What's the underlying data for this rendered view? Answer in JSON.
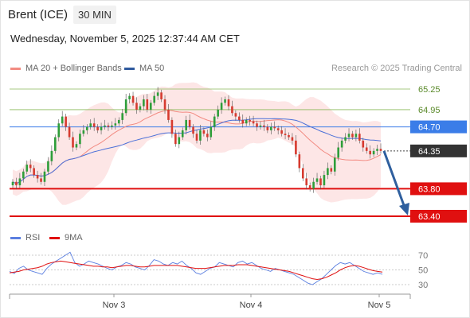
{
  "header": {
    "instrument": "Brent (ICE)",
    "timeframe": "30 MIN",
    "datetime": "Wednesday, November 5, 2025 12:37:44 AM CET"
  },
  "legend": {
    "ma20_label": "MA 20 + Bollinger Bands",
    "ma50_label": "MA 50",
    "credit": "Research © 2025 Trading Central",
    "rsi_label": "RSI",
    "ma9_label": "9MA"
  },
  "colors": {
    "ma20": "#f28b82",
    "band_fill": "#fde3e3",
    "ma50": "#4a6fd8",
    "resistance_line": "#8ab85a",
    "pivot_blue": "#3b7de8",
    "support_red": "#e01010",
    "current_box": "#333333",
    "candle_up": "#2e9e3a",
    "candle_down": "#d63a2f",
    "rsi": "#5b7fe0",
    "rsi_ma": "#e01010",
    "arrow": "#2f5f9e"
  },
  "chart_data": {
    "type": "candlestick",
    "price_axis_levels": [
      65.25,
      64.95,
      64.7,
      64.35,
      63.8,
      63.4
    ],
    "levels": [
      {
        "value": 65.25,
        "label": "65.25",
        "kind": "resistance"
      },
      {
        "value": 64.95,
        "label": "64.95",
        "kind": "resistance"
      },
      {
        "value": 64.7,
        "label": "64.70",
        "kind": "pivot"
      },
      {
        "value": 64.35,
        "label": "64.35",
        "kind": "current"
      },
      {
        "value": 63.8,
        "label": "63.80",
        "kind": "support"
      },
      {
        "value": 63.4,
        "label": "63.40",
        "kind": "support"
      }
    ],
    "x_ticks": [
      "Nov 3",
      "Nov 4",
      "Nov 5"
    ],
    "candles_close": [
      63.9,
      63.85,
      63.95,
      64.05,
      64.15,
      64.1,
      64.0,
      63.95,
      63.9,
      64.05,
      64.2,
      64.35,
      64.55,
      64.75,
      64.85,
      64.7,
      64.55,
      64.4,
      64.45,
      64.6,
      64.65,
      64.7,
      64.75,
      64.7,
      64.65,
      64.7,
      64.72,
      64.7,
      64.72,
      64.75,
      64.8,
      64.9,
      65.1,
      65.15,
      65.05,
      64.95,
      65.0,
      65.1,
      64.95,
      65.05,
      65.15,
      65.2,
      65.1,
      64.95,
      64.8,
      64.6,
      64.45,
      64.55,
      64.65,
      64.8,
      64.7,
      64.6,
      64.5,
      64.65,
      64.6,
      64.55,
      64.7,
      64.85,
      64.95,
      65.05,
      65.1,
      65.0,
      64.9,
      64.85,
      64.8,
      64.75,
      64.8,
      64.78,
      64.75,
      64.7,
      64.72,
      64.7,
      64.65,
      64.7,
      64.68,
      64.65,
      64.6,
      64.58,
      64.55,
      64.5,
      64.3,
      64.1,
      63.95,
      63.85,
      63.8,
      63.9,
      63.95,
      63.85,
      64.0,
      64.1,
      64.05,
      64.25,
      64.4,
      64.5,
      64.55,
      64.6,
      64.55,
      64.6,
      64.5,
      64.4,
      64.35,
      64.3,
      64.35,
      64.38,
      64.35
    ],
    "rsi": {
      "label": "RSI",
      "ma_label": "9MA",
      "axis_levels": [
        70,
        50,
        30
      ],
      "values": [
        48,
        45,
        52,
        55,
        50,
        48,
        46,
        44,
        52,
        58,
        62,
        66,
        70,
        74,
        60,
        55,
        58,
        62,
        60,
        58,
        55,
        52,
        50,
        54,
        56,
        60,
        58,
        54,
        52,
        50,
        56,
        64,
        62,
        58,
        56,
        60,
        58,
        62,
        56,
        52,
        46,
        44,
        48,
        52,
        54,
        60,
        58,
        56,
        54,
        60,
        62,
        58,
        60,
        56,
        52,
        50,
        48,
        52,
        50,
        48,
        46,
        44,
        40,
        36,
        32,
        30,
        34,
        38,
        44,
        50,
        56,
        60,
        58,
        60,
        56,
        52,
        48,
        46,
        44,
        46,
        44
      ],
      "ma_values": [
        46,
        47,
        48,
        50,
        51,
        52,
        53,
        55,
        58,
        60,
        61,
        62,
        61,
        60,
        59,
        58,
        57,
        56,
        55,
        55,
        54,
        54,
        53,
        54,
        55,
        56,
        56,
        55,
        54,
        54,
        55,
        56,
        56,
        56,
        56,
        56,
        56,
        55,
        54,
        53,
        52,
        52,
        52,
        53,
        54,
        55,
        56,
        56,
        56,
        57,
        57,
        57,
        56,
        55,
        54,
        53,
        52,
        51,
        50,
        49,
        48,
        46,
        44,
        42,
        40,
        38,
        37,
        38,
        40,
        43,
        46,
        50,
        53,
        55,
        56,
        55,
        53,
        51,
        49,
        48,
        47
      ]
    }
  }
}
